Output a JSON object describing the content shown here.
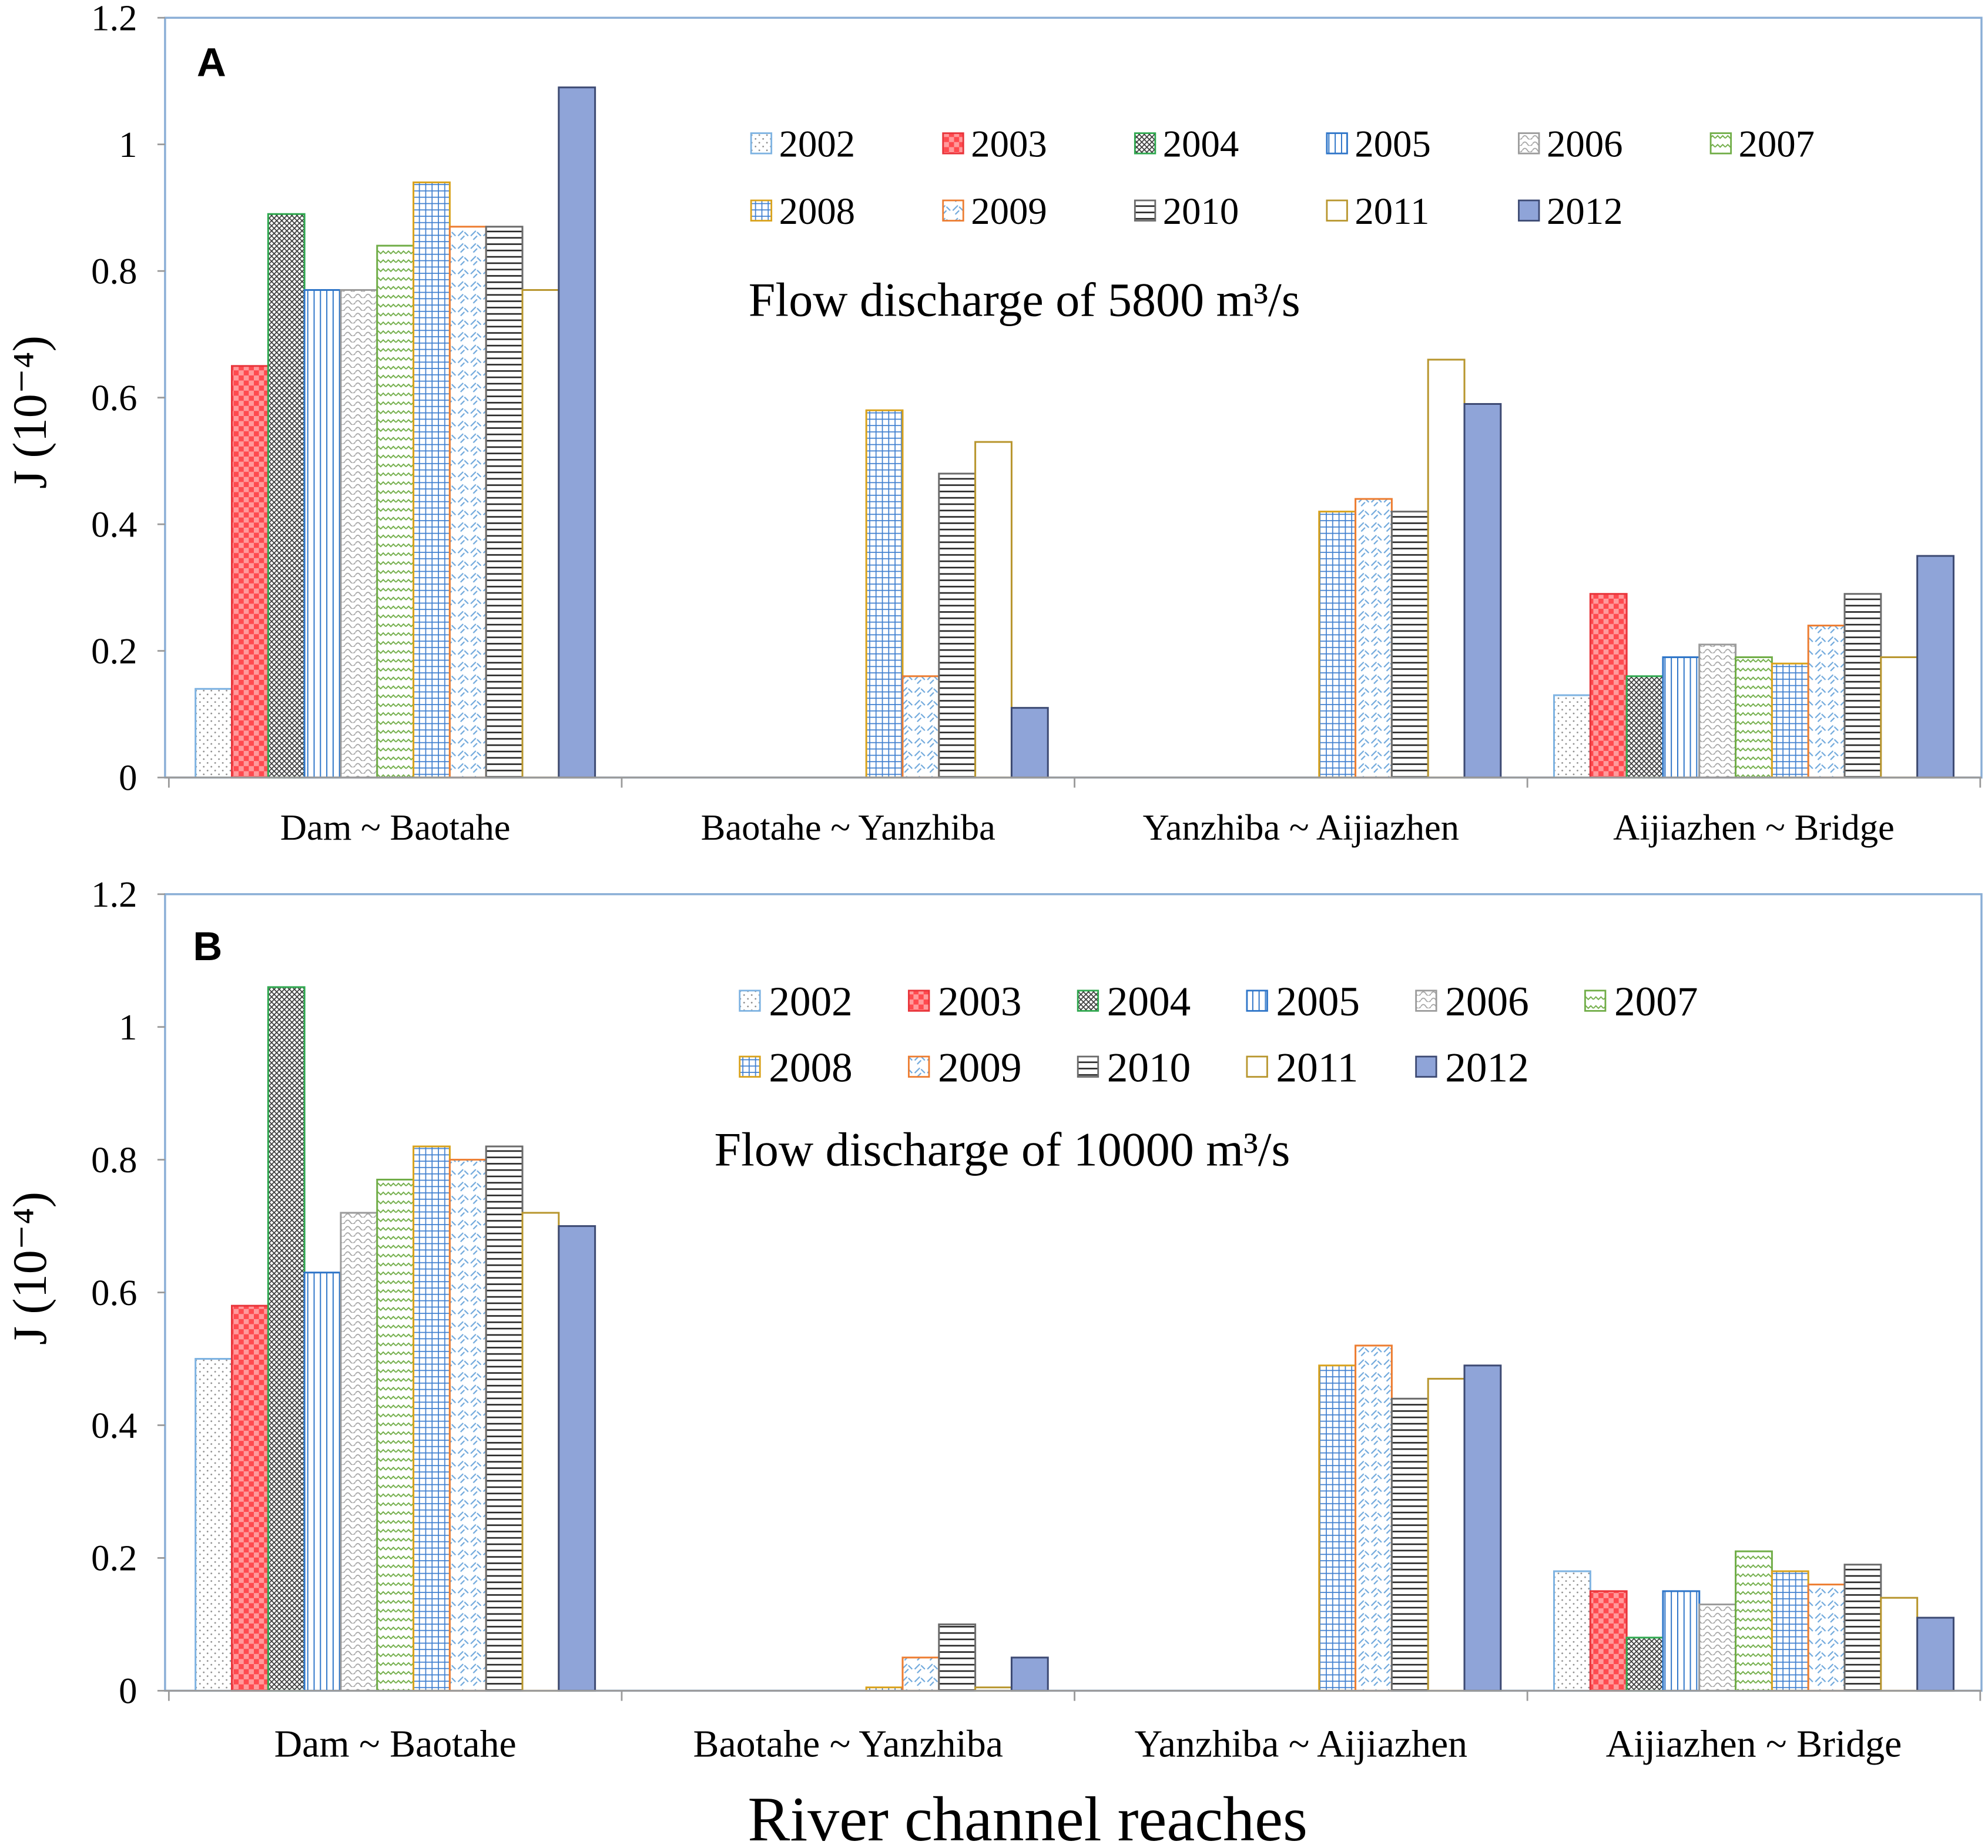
{
  "chart_data": [
    {
      "type": "bar",
      "panel_label": "A",
      "annotation": "Flow discharge of 5800 m³/s",
      "ylabel": "J (10⁻⁴)",
      "ylim": [
        0,
        1.2
      ],
      "yticks": [
        0,
        0.2,
        0.4,
        0.6,
        0.8,
        1,
        1.2
      ],
      "grid": false,
      "categories": [
        "Dam ~ Baotahe",
        "Baotahe ~ Yanzhiba",
        "Yanzhiba ~ Aijiazhen",
        "Aijiazhen ~ Bridge"
      ],
      "series": [
        {
          "name": "2002",
          "color": "#7eb3e2",
          "values": [
            0.14,
            null,
            null,
            0.13
          ]
        },
        {
          "name": "2003",
          "color": "#e8343a",
          "values": [
            0.65,
            null,
            null,
            0.29
          ]
        },
        {
          "name": "2004",
          "color": "#2fa84f",
          "values": [
            0.89,
            null,
            null,
            0.16
          ]
        },
        {
          "name": "2005",
          "color": "#2e75c8",
          "values": [
            0.77,
            null,
            null,
            0.19
          ]
        },
        {
          "name": "2006",
          "color": "#9b9b9b",
          "values": [
            0.77,
            null,
            null,
            0.21
          ]
        },
        {
          "name": "2007",
          "color": "#70ad47",
          "values": [
            0.84,
            null,
            null,
            0.19
          ]
        },
        {
          "name": "2008",
          "color": "#d9a21b",
          "values": [
            0.94,
            0.58,
            0.42,
            0.18
          ]
        },
        {
          "name": "2009",
          "color": "#ed7d31",
          "values": [
            0.87,
            0.16,
            0.44,
            0.24
          ]
        },
        {
          "name": "2010",
          "color": "#6b6b6b",
          "values": [
            0.87,
            0.48,
            0.42,
            0.29
          ]
        },
        {
          "name": "2011",
          "color": "#b8962e",
          "values": [
            0.77,
            0.53,
            0.66,
            0.19
          ]
        },
        {
          "name": "2012",
          "color": "#3d4a73",
          "values": [
            1.09,
            0.11,
            0.59,
            0.35
          ]
        }
      ]
    },
    {
      "type": "bar",
      "panel_label": "B",
      "annotation": "Flow discharge of 10000 m³/s",
      "xlabel": "River channel reaches",
      "ylabel": "J (10⁻⁴)",
      "ylim": [
        0,
        1.2
      ],
      "yticks": [
        0,
        0.2,
        0.4,
        0.6,
        0.8,
        1,
        1.2
      ],
      "grid": false,
      "categories": [
        "Dam ~ Baotahe",
        "Baotahe ~ Yanzhiba",
        "Yanzhiba ~ Aijiazhen",
        "Aijiazhen ~ Bridge"
      ],
      "series": [
        {
          "name": "2002",
          "color": "#7eb3e2",
          "values": [
            0.5,
            null,
            null,
            0.18
          ]
        },
        {
          "name": "2003",
          "color": "#e8343a",
          "values": [
            0.58,
            null,
            null,
            0.15
          ]
        },
        {
          "name": "2004",
          "color": "#2fa84f",
          "values": [
            1.06,
            null,
            null,
            0.08
          ]
        },
        {
          "name": "2005",
          "color": "#2e75c8",
          "values": [
            0.63,
            null,
            null,
            0.15
          ]
        },
        {
          "name": "2006",
          "color": "#9b9b9b",
          "values": [
            0.72,
            null,
            null,
            0.13
          ]
        },
        {
          "name": "2007",
          "color": "#70ad47",
          "values": [
            0.77,
            null,
            null,
            0.21
          ]
        },
        {
          "name": "2008",
          "color": "#d9a21b",
          "values": [
            0.82,
            0.005,
            0.49,
            0.18
          ]
        },
        {
          "name": "2009",
          "color": "#ed7d31",
          "values": [
            0.8,
            0.05,
            0.52,
            0.16
          ]
        },
        {
          "name": "2010",
          "color": "#6b6b6b",
          "values": [
            0.82,
            0.1,
            0.44,
            0.19
          ]
        },
        {
          "name": "2011",
          "color": "#b8962e",
          "values": [
            0.72,
            0.005,
            0.47,
            0.14
          ]
        },
        {
          "name": "2012",
          "color": "#3d4a73",
          "values": [
            0.7,
            0.05,
            0.49,
            0.11
          ]
        }
      ]
    }
  ]
}
